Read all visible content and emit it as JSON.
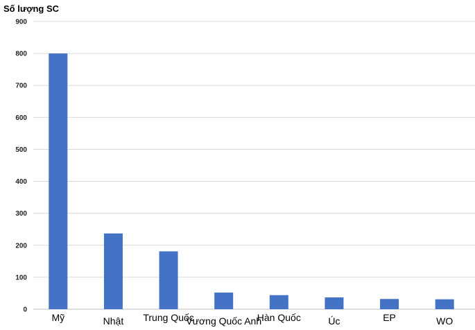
{
  "chart_data": {
    "type": "bar",
    "title": "",
    "xlabel": "",
    "ylabel": "Số lượng SC",
    "categories": [
      "Mỹ",
      "Nhật",
      "Trung Quốc",
      "Vương Quốc Anh",
      "Hàn Quốc",
      "Úc",
      "EP",
      "WO"
    ],
    "values": [
      800,
      237,
      181,
      52,
      44,
      37,
      32,
      31
    ],
    "ylim": [
      0,
      900
    ],
    "yticks": [
      0,
      100,
      200,
      300,
      400,
      500,
      600,
      700,
      800,
      900
    ],
    "grid": true,
    "bar_color": "#4472C4"
  }
}
